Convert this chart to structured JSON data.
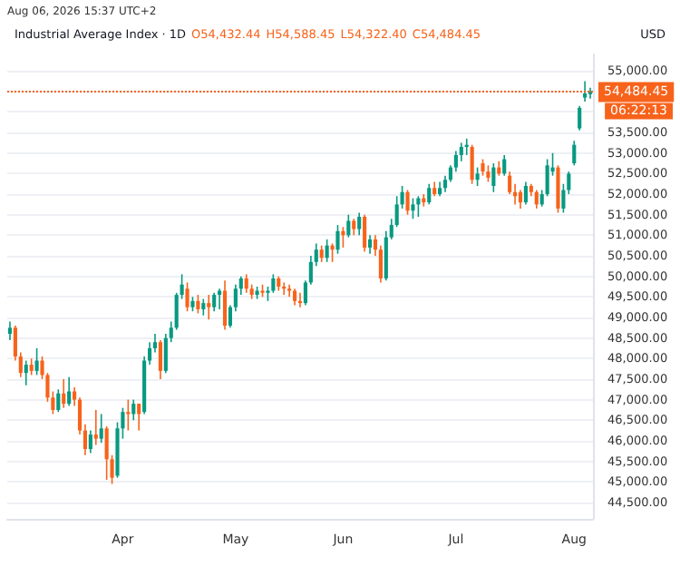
{
  "chart_data": {
    "type": "candlestick",
    "title": "Industrial Average Index · 1D",
    "subtitle": "Aug 06, 2026 15:37 UTC+2",
    "ylabel": "USD",
    "annotations": [
      "O54,432.44",
      "H54,588.45",
      "L54,322.40",
      "C54,484.45",
      "06:22:13"
    ],
    "categories": [
      null,
      null,
      null,
      null,
      null,
      null,
      null,
      null,
      null,
      null,
      null,
      null,
      null,
      null,
      null,
      null,
      null,
      null,
      null,
      null,
      null,
      "Apr",
      null,
      null,
      null,
      null,
      null,
      null,
      null,
      null,
      null,
      null,
      null,
      null,
      null,
      null,
      null,
      null,
      null,
      null,
      null,
      null,
      "May",
      null,
      null,
      null,
      null,
      null,
      null,
      null,
      null,
      null,
      null,
      null,
      null,
      null,
      null,
      null,
      null,
      null,
      null,
      null,
      "Jun",
      null,
      null,
      null,
      null,
      null,
      null,
      null,
      null,
      null,
      null,
      null,
      null,
      null,
      null,
      null,
      null,
      null,
      null,
      null,
      null,
      "Jul",
      null,
      null,
      null,
      null,
      null,
      null,
      null,
      null,
      null,
      null,
      null,
      null,
      null,
      null,
      null,
      null,
      null,
      null,
      null,
      null,
      null,
      "Aug",
      null,
      null,
      null
    ],
    "ohlc": [
      [
        48600,
        48900,
        48450,
        48750
      ],
      [
        48750,
        48800,
        47950,
        48050
      ],
      [
        48050,
        48150,
        47550,
        47650
      ],
      [
        47650,
        47950,
        47350,
        47850
      ],
      [
        47850,
        48000,
        47600,
        47700
      ],
      [
        47700,
        48250,
        47600,
        47950
      ],
      [
        47950,
        48050,
        47500,
        47600
      ],
      [
        47600,
        47650,
        46950,
        47050
      ],
      [
        47050,
        47200,
        46650,
        46750
      ],
      [
        46750,
        47250,
        46700,
        47150
      ],
      [
        47150,
        47500,
        46800,
        46900
      ],
      [
        46900,
        47550,
        46850,
        47200
      ],
      [
        47200,
        47300,
        46850,
        47000
      ],
      [
        47000,
        47050,
        46150,
        46250
      ],
      [
        46250,
        46400,
        45650,
        45800
      ],
      [
        45800,
        46250,
        45700,
        46150
      ],
      [
        46150,
        46750,
        45900,
        46050
      ],
      [
        46050,
        46650,
        45950,
        46300
      ],
      [
        46300,
        46350,
        45050,
        45550
      ],
      [
        45550,
        45650,
        44950,
        45100
      ],
      [
        45150,
        46450,
        45100,
        46300
      ],
      [
        46300,
        46800,
        46050,
        46700
      ],
      [
        46700,
        47000,
        46250,
        46650
      ],
      [
        46650,
        47000,
        46500,
        46900
      ],
      [
        46900,
        46900,
        46250,
        46650
      ],
      [
        46700,
        48050,
        46650,
        47950
      ],
      [
        47950,
        48400,
        47850,
        48250
      ],
      [
        48250,
        48600,
        48150,
        48400
      ],
      [
        48400,
        48450,
        47500,
        47700
      ],
      [
        47700,
        48600,
        47650,
        48500
      ],
      [
        48500,
        48900,
        48400,
        48750
      ],
      [
        48750,
        49600,
        48700,
        49550
      ],
      [
        49550,
        50050,
        49450,
        49800
      ],
      [
        49700,
        49850,
        49150,
        49250
      ],
      [
        49250,
        49500,
        49150,
        49400
      ],
      [
        49400,
        49550,
        49100,
        49200
      ],
      [
        49200,
        49450,
        49050,
        49350
      ],
      [
        49350,
        49550,
        48950,
        49250
      ],
      [
        49250,
        49600,
        49150,
        49550
      ],
      [
        49550,
        49700,
        49200,
        49650
      ],
      [
        49650,
        49900,
        48700,
        48800
      ],
      [
        48800,
        49300,
        48750,
        49250
      ],
      [
        49250,
        49800,
        49150,
        49700
      ],
      [
        49700,
        50000,
        49550,
        49950
      ],
      [
        49950,
        50050,
        49600,
        49700
      ],
      [
        49700,
        49800,
        49450,
        49550
      ],
      [
        49550,
        49750,
        49450,
        49650
      ],
      [
        49650,
        49800,
        49500,
        49600
      ],
      [
        49600,
        49750,
        49400,
        49650
      ],
      [
        49650,
        50050,
        49600,
        49950
      ],
      [
        49950,
        50000,
        49650,
        49750
      ],
      [
        49750,
        49850,
        49550,
        49700
      ],
      [
        49700,
        49800,
        49500,
        49650
      ],
      [
        49650,
        49700,
        49300,
        49400
      ],
      [
        49400,
        49600,
        49250,
        49350
      ],
      [
        49350,
        49900,
        49300,
        49850
      ],
      [
        49850,
        50500,
        49800,
        50350
      ],
      [
        50350,
        50800,
        50250,
        50650
      ],
      [
        50650,
        50750,
        50350,
        50450
      ],
      [
        50450,
        50900,
        50350,
        50750
      ],
      [
        50750,
        50800,
        50350,
        50650
      ],
      [
        50650,
        51250,
        50550,
        51100
      ],
      [
        51100,
        51200,
        50700,
        51000
      ],
      [
        51000,
        51500,
        50950,
        51350
      ],
      [
        51350,
        51400,
        51000,
        51150
      ],
      [
        51150,
        51550,
        51000,
        51450
      ],
      [
        51450,
        51500,
        50600,
        50700
      ],
      [
        50700,
        51000,
        50550,
        50900
      ],
      [
        50900,
        51000,
        50500,
        50650
      ],
      [
        50650,
        50750,
        49850,
        49950
      ],
      [
        49950,
        51100,
        49900,
        50950
      ],
      [
        50950,
        51400,
        50900,
        51250
      ],
      [
        51250,
        51950,
        51200,
        51750
      ],
      [
        51750,
        52200,
        51650,
        52050
      ],
      [
        52050,
        52100,
        51500,
        51600
      ],
      [
        51600,
        51900,
        51400,
        51750
      ],
      [
        51750,
        51950,
        51450,
        51900
      ],
      [
        51900,
        52000,
        51700,
        51800
      ],
      [
        51800,
        52250,
        51750,
        52150
      ],
      [
        52150,
        52300,
        51950,
        52000
      ],
      [
        52000,
        52300,
        51950,
        52150
      ],
      [
        52150,
        52450,
        52050,
        52350
      ],
      [
        52350,
        52700,
        52300,
        52650
      ],
      [
        52650,
        53050,
        52550,
        52950
      ],
      [
        52950,
        53250,
        52800,
        53150
      ],
      [
        53150,
        53350,
        52950,
        53200
      ],
      [
        53150,
        53200,
        52250,
        52350
      ],
      [
        52350,
        52650,
        52200,
        52500
      ],
      [
        52750,
        52850,
        52450,
        52550
      ],
      [
        52550,
        52700,
        52300,
        52400
      ],
      [
        52200,
        52750,
        52050,
        52650
      ],
      [
        52650,
        52800,
        52450,
        52500
      ],
      [
        52500,
        52950,
        52450,
        52850
      ],
      [
        52450,
        52550,
        52000,
        52050
      ],
      [
        52050,
        52250,
        51750,
        51950
      ],
      [
        52050,
        52100,
        51650,
        51800
      ],
      [
        51800,
        52300,
        51750,
        52200
      ],
      [
        52200,
        52250,
        51950,
        52050
      ],
      [
        52050,
        52100,
        51650,
        51750
      ],
      [
        51750,
        52100,
        51700,
        52000
      ],
      [
        52000,
        52850,
        51950,
        52700
      ],
      [
        52550,
        53000,
        52450,
        52650
      ],
      [
        52650,
        52700,
        51550,
        51650
      ],
      [
        51650,
        52250,
        51550,
        52100
      ],
      [
        52100,
        52550,
        52000,
        52500
      ],
      [
        52750,
        53300,
        52700,
        53200
      ],
      [
        53600,
        54150,
        53550,
        54100
      ],
      [
        54350,
        54750,
        54250,
        54450
      ],
      [
        54432.44,
        54588.45,
        54322.4,
        54484.45
      ]
    ],
    "colors": [
      "#089981",
      "#f7631b",
      "#f7631b",
      "#089981",
      "#f7631b",
      "#089981",
      "#f7631b",
      "#f7631b",
      "#f7631b",
      "#089981",
      "#f7631b",
      "#089981",
      "#f7631b",
      "#f7631b",
      "#f7631b",
      "#089981",
      "#f7631b",
      "#089981",
      "#f7631b",
      "#f7631b",
      "#089981",
      "#089981",
      "#f7631b",
      "#089981",
      "#f7631b",
      "#089981",
      "#089981",
      "#089981",
      "#f7631b",
      "#089981",
      "#089981",
      "#089981",
      "#089981",
      "#f7631b",
      "#089981",
      "#f7631b",
      "#089981",
      "#f7631b",
      "#089981",
      "#089981",
      "#f7631b",
      "#089981",
      "#089981",
      "#089981",
      "#f7631b",
      "#f7631b",
      "#089981",
      "#f7631b",
      "#089981",
      "#089981",
      "#f7631b",
      "#f7631b",
      "#f7631b",
      "#f7631b",
      "#f7631b",
      "#089981",
      "#089981",
      "#089981",
      "#f7631b",
      "#089981",
      "#f7631b",
      "#089981",
      "#f7631b",
      "#089981",
      "#f7631b",
      "#089981",
      "#f7631b",
      "#089981",
      "#f7631b",
      "#f7631b",
      "#089981",
      "#089981",
      "#089981",
      "#089981",
      "#f7631b",
      "#089981",
      "#089981",
      "#f7631b",
      "#089981",
      "#f7631b",
      "#089981",
      "#089981",
      "#089981",
      "#089981",
      "#089981",
      "#089981",
      "#f7631b",
      "#089981",
      "#f7631b",
      "#f7631b",
      "#089981",
      "#f7631b",
      "#089981",
      "#f7631b",
      "#f7631b",
      "#f7631b",
      "#089981",
      "#f7631b",
      "#f7631b",
      "#089981",
      "#089981",
      "#089981",
      "#f7631b",
      "#089981",
      "#089981",
      "#089981",
      "#089981",
      "#089981",
      "#089981"
    ],
    "ylim": [
      44100,
      55400
    ],
    "yticks": [
      {
        "value": 44500,
        "label": "44,500.00"
      },
      {
        "value": 45000,
        "label": "45,000.00"
      },
      {
        "value": 45500,
        "label": "45,500.00"
      },
      {
        "value": 46000,
        "label": "46,000.00"
      },
      {
        "value": 46500,
        "label": "46,500.00"
      },
      {
        "value": 47000,
        "label": "47,000.00"
      },
      {
        "value": 47500,
        "label": "47,500.00"
      },
      {
        "value": 48000,
        "label": "48,000.00"
      },
      {
        "value": 48500,
        "label": "48,500.00"
      },
      {
        "value": 49000,
        "label": "49,000.00"
      },
      {
        "value": 49500,
        "label": "49,500.00"
      },
      {
        "value": 50000,
        "label": "50,000.00"
      },
      {
        "value": 50500,
        "label": "50,500.00"
      },
      {
        "value": 51000,
        "label": "51,000.00"
      },
      {
        "value": 51500,
        "label": "51,500.00"
      },
      {
        "value": 52000,
        "label": "52,000.00"
      },
      {
        "value": 52500,
        "label": "52,500.00"
      },
      {
        "value": 53000,
        "label": "53,000.00"
      },
      {
        "value": 53500,
        "label": "53,500.00"
      },
      {
        "value": 54000,
        "label": null
      },
      {
        "value": 54500,
        "label": null
      },
      {
        "value": 55000,
        "label": "55,000.00"
      }
    ],
    "ref_lines": [
      {
        "axis": "y",
        "value": 54484.45,
        "label": "54,484.45",
        "color": "#f7631b",
        "line_style": "dotted"
      }
    ],
    "grid": "y"
  }
}
